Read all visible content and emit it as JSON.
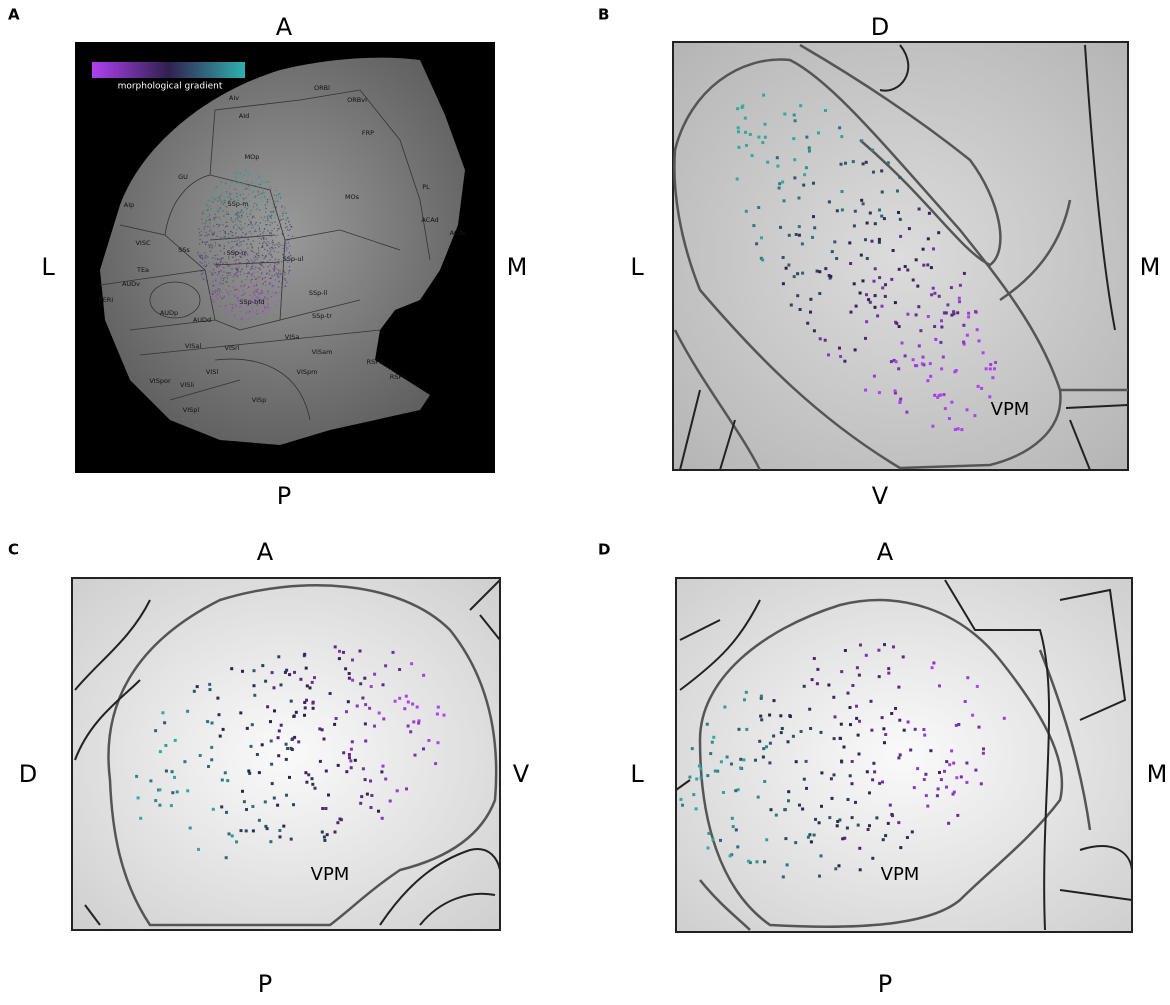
{
  "panels": [
    {
      "letter": "A",
      "top": "A",
      "bottom": "P",
      "left": "L",
      "right": "M",
      "legend": "morphological gradient",
      "regions": [
        "ORBl",
        "AIv",
        "AId",
        "ORBvl",
        "FRP",
        "MOp",
        "GU",
        "MOs",
        "PL",
        "ACAd",
        "ACAv",
        "SSp-m",
        "SSs",
        "VISC",
        "SSp-n",
        "SSp-ul",
        "SSp-ll",
        "SSp-bfd",
        "TEa",
        "AUDv",
        "AUDp",
        "AUDd",
        "PERI",
        "VISal",
        "VISrl",
        "VISa",
        "SSp-tr",
        "VISam",
        "VISpm",
        "RSPd",
        "RSPv",
        "VISl",
        "VISp",
        "VISpor",
        "VISli",
        "VISpl",
        "AIp"
      ]
    },
    {
      "letter": "B",
      "top": "D",
      "bottom": "V",
      "left": "L",
      "right": "M",
      "region": "VPM"
    },
    {
      "letter": "C",
      "top": "A",
      "bottom": "P",
      "left": "D",
      "right": "V",
      "region": "VPM"
    },
    {
      "letter": "D",
      "top": "A",
      "bottom": "P",
      "left": "L",
      "right": "M",
      "region": "VPM"
    }
  ]
}
